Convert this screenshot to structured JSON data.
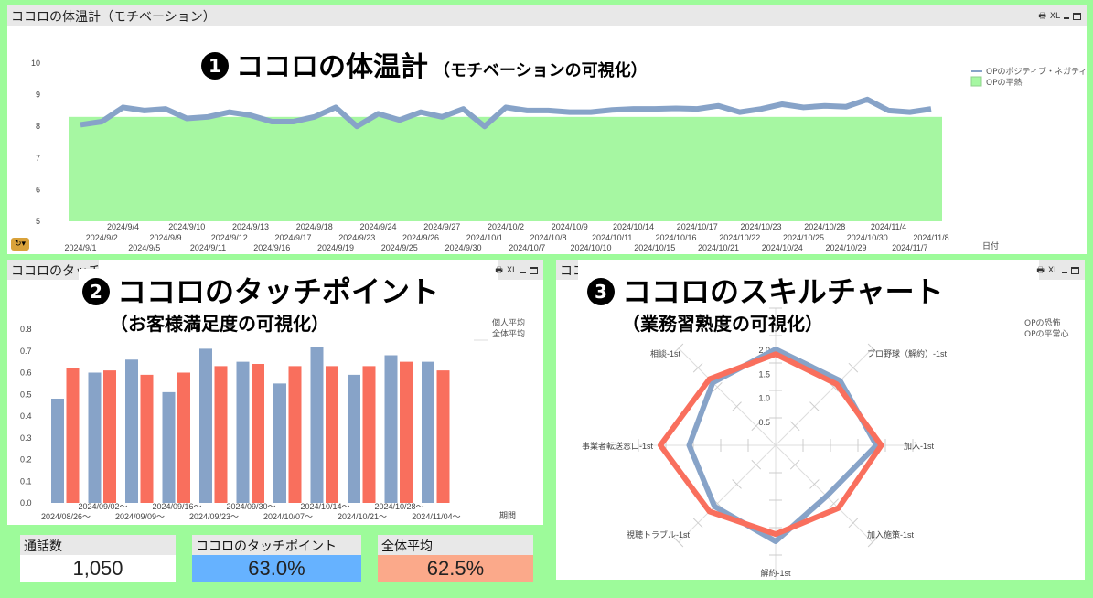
{
  "panel1": {
    "header_title": "ココロの体温計（モチベーション）",
    "overlay_num": "1",
    "overlay_title": "ココロの体温計",
    "overlay_subtitle": "（モチベーションの可視化）",
    "tools": {
      "print": "🖶",
      "xl": "XL"
    },
    "legend": [
      {
        "label": "OPのポジティブ・ネガティブ",
        "color": "#87a3c8"
      },
      {
        "label": "OPの平熱",
        "color": "#a6f7a2"
      }
    ],
    "x_axis_title": "日付"
  },
  "panel2": {
    "header_title": "ココロのタッチポイント",
    "overlay_num": "2",
    "overlay_title": "ココロのタッチポイント",
    "overlay_subtitle": "（お客様満足度の可視化）",
    "tools": {
      "print": "🖶",
      "xl": "XL"
    },
    "legend": [
      {
        "label": "個人平均",
        "color": "#87a3c8"
      },
      {
        "label": "全体平均",
        "color": "#f96f5d"
      }
    ],
    "x_axis_title": "期間"
  },
  "panel3": {
    "header_title": "ココロのスキルチャート",
    "overlay_num": "3",
    "overlay_title": "ココロのスキルチャート",
    "overlay_subtitle": "（業務習熟度の可視化）",
    "tools": {
      "print": "🖶",
      "xl": "XL"
    },
    "legend": [
      {
        "label": "OPの恐怖",
        "color": "#87a3c8"
      },
      {
        "label": "OPの平常心",
        "color": "#f96f5d"
      }
    ]
  },
  "kpis": [
    {
      "label": "通話数",
      "value": "1,050",
      "color": "#ffffff"
    },
    {
      "label": "ココロのタッチポイント",
      "value": "63.0%",
      "color": "#66b2ff"
    },
    {
      "label": "全体平均",
      "value": "62.5%",
      "color": "#fba98a"
    }
  ],
  "chart_data": [
    {
      "type": "line",
      "title": "ココロの体温計（モチベーション）",
      "xlabel": "日付",
      "ylabel": "",
      "ylim": [
        5,
        10
      ],
      "yticks": [
        5,
        6,
        7,
        8,
        9,
        10
      ],
      "x": [
        "2024/9/1",
        "2024/9/2",
        "2024/9/4",
        "2024/9/5",
        "2024/9/9",
        "2024/9/10",
        "2024/9/11",
        "2024/9/12",
        "2024/9/13",
        "2024/9/16",
        "2024/9/17",
        "2024/9/18",
        "2024/9/19",
        "2024/9/23",
        "2024/9/24",
        "2024/9/25",
        "2024/9/26",
        "2024/9/27",
        "2024/9/30",
        "2024/10/1",
        "2024/10/2",
        "2024/10/7",
        "2024/10/8",
        "2024/10/9",
        "2024/10/10",
        "2024/10/11",
        "2024/10/14",
        "2024/10/15",
        "2024/10/16",
        "2024/10/17",
        "2024/10/21",
        "2024/10/22",
        "2024/10/23",
        "2024/10/24",
        "2024/10/25",
        "2024/10/28",
        "2024/10/29",
        "2024/10/30",
        "2024/11/4",
        "2024/11/7",
        "2024/11/8"
      ],
      "series": [
        {
          "name": "OPのポジティブ・ネガティブ",
          "type": "line",
          "values": [
            8.05,
            8.15,
            8.6,
            8.5,
            8.55,
            8.25,
            8.3,
            8.45,
            8.35,
            8.15,
            8.15,
            8.3,
            8.6,
            8.0,
            8.4,
            8.2,
            8.45,
            8.3,
            8.55,
            8.0,
            8.6,
            8.5,
            8.5,
            8.45,
            8.45,
            8.52,
            8.55,
            8.55,
            8.57,
            8.55,
            8.65,
            8.45,
            8.55,
            8.7,
            8.6,
            8.65,
            8.62,
            8.85,
            8.5,
            8.45,
            8.55
          ]
        },
        {
          "name": "OPの平熱",
          "type": "area",
          "values_constant": 8.3
        }
      ],
      "legend_position": "right"
    },
    {
      "type": "bar",
      "title": "ココロのタッチポイント",
      "xlabel": "期間",
      "ylim": [
        0,
        0.8
      ],
      "yticks": [
        0.0,
        0.1,
        0.2,
        0.3,
        0.4,
        0.5,
        0.6,
        0.7,
        0.8
      ],
      "categories": [
        "2024/08/26〜",
        "2024/09/02〜",
        "2024/09/09〜",
        "2024/09/16〜",
        "2024/09/23〜",
        "2024/09/30〜",
        "2024/10/07〜",
        "2024/10/14〜",
        "2024/10/21〜",
        "2024/10/28〜",
        "2024/11/04〜"
      ],
      "series": [
        {
          "name": "個人平均",
          "color": "#87a3c8",
          "values": [
            0.48,
            0.6,
            0.66,
            0.51,
            0.71,
            0.65,
            0.55,
            0.72,
            0.59,
            0.68,
            0.65
          ]
        },
        {
          "name": "全体平均",
          "color": "#f96f5d",
          "values": [
            0.62,
            0.61,
            0.59,
            0.6,
            0.63,
            0.64,
            0.63,
            0.63,
            0.63,
            0.65,
            0.61
          ]
        }
      ]
    },
    {
      "type": "radar",
      "title": "ココロのスキルチャート",
      "rlim": [
        0,
        2.0
      ],
      "rticks": [
        0.5,
        1.0,
        1.5,
        2.0
      ],
      "categories": [
        "プロ野球（解約）-1st",
        "加入-1st",
        "加入施策-1st",
        "解約-1st",
        "視聴トラブル-1st",
        "事業者転送窓口-1st",
        "相談-1st",
        "(top)"
      ],
      "series": [
        {
          "name": "OPの恐怖",
          "color": "#87a3c8",
          "values": [
            1.9,
            2.1,
            1.5,
            2.0,
            1.8,
            1.8,
            1.85,
            2.0
          ]
        },
        {
          "name": "OPの平常心",
          "color": "#f96f5d",
          "values": [
            1.8,
            2.2,
            1.85,
            1.85,
            1.95,
            2.4,
            1.95,
            1.9
          ]
        }
      ]
    }
  ]
}
